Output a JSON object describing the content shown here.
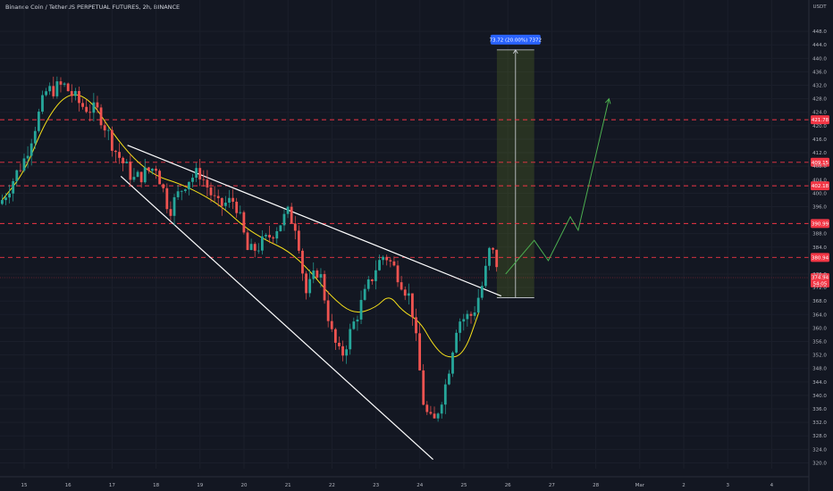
{
  "header": {
    "symbol_title": "Binance Coin / TetherUS PERPETUAL FUTURES, 2h, BINANCE"
  },
  "chart_data": {
    "type": "candlestick",
    "currency_label": "USDT",
    "ylim": [
      318,
      452
    ],
    "y_ticks": [
      448,
      444,
      440,
      436,
      432,
      428,
      424,
      420,
      416,
      412,
      408,
      404,
      400,
      396,
      388,
      384,
      376,
      372,
      368,
      364,
      360,
      356,
      352,
      348,
      344,
      340,
      336,
      332,
      328,
      324,
      320
    ],
    "x_ticks": [
      {
        "label": "15",
        "t": 0
      },
      {
        "label": "16",
        "t": 1
      },
      {
        "label": "17",
        "t": 2
      },
      {
        "label": "18",
        "t": 3
      },
      {
        "label": "19",
        "t": 4
      },
      {
        "label": "20",
        "t": 5
      },
      {
        "label": "21",
        "t": 6
      },
      {
        "label": "22",
        "t": 7
      },
      {
        "label": "23",
        "t": 8
      },
      {
        "label": "24",
        "t": 9
      },
      {
        "label": "25",
        "t": 10
      },
      {
        "label": "26",
        "t": 11
      },
      {
        "label": "27",
        "t": 12
      },
      {
        "label": "28",
        "t": 13
      },
      {
        "label": "Mar",
        "t": 14
      },
      {
        "label": "2",
        "t": 15
      },
      {
        "label": "3",
        "t": 16
      },
      {
        "label": "4",
        "t": 17
      }
    ],
    "resistance_levels": [
      {
        "value": 421.78,
        "label": "421.78"
      },
      {
        "value": 409.15,
        "label": "409.15"
      },
      {
        "value": 402.18,
        "label": "402.18"
      },
      {
        "value": 390.99,
        "label": "390.99"
      },
      {
        "value": 380.94,
        "label": "380.94"
      }
    ],
    "last_price": {
      "value": 374.94,
      "label": "374.94",
      "countdown": "54:05"
    },
    "measure": {
      "label": "73.72 (20.00%) 7372",
      "low": 369,
      "high": 442.5,
      "t_start": 10.75,
      "t_end": 11.6
    },
    "wedge_upper": [
      [
        2.35,
        414.2
      ],
      [
        10.85,
        369.5
      ]
    ],
    "wedge_lower": [
      [
        2.2,
        405
      ],
      [
        9.3,
        321
      ]
    ],
    "projection": [
      [
        10.95,
        376
      ],
      [
        11.6,
        386
      ],
      [
        11.92,
        380
      ],
      [
        12.42,
        393
      ],
      [
        12.6,
        389
      ],
      [
        13.3,
        428
      ]
    ],
    "ma_line": [
      [
        -0.5,
        398
      ],
      [
        0,
        406
      ],
      [
        0.5,
        422
      ],
      [
        1,
        430
      ],
      [
        1.5,
        428
      ],
      [
        2,
        418
      ],
      [
        2.5,
        410
      ],
      [
        3,
        405
      ],
      [
        3.5,
        403
      ],
      [
        4,
        400
      ],
      [
        4.5,
        396
      ],
      [
        5,
        390
      ],
      [
        5.5,
        386
      ],
      [
        6,
        383
      ],
      [
        6.5,
        377
      ],
      [
        7,
        369
      ],
      [
        7.5,
        364
      ],
      [
        8,
        366
      ],
      [
        8.3,
        370
      ],
      [
        8.6,
        365
      ],
      [
        9,
        362
      ],
      [
        9.3,
        355
      ],
      [
        9.6,
        351
      ],
      [
        10,
        352
      ],
      [
        10.35,
        365
      ]
    ]
  }
}
